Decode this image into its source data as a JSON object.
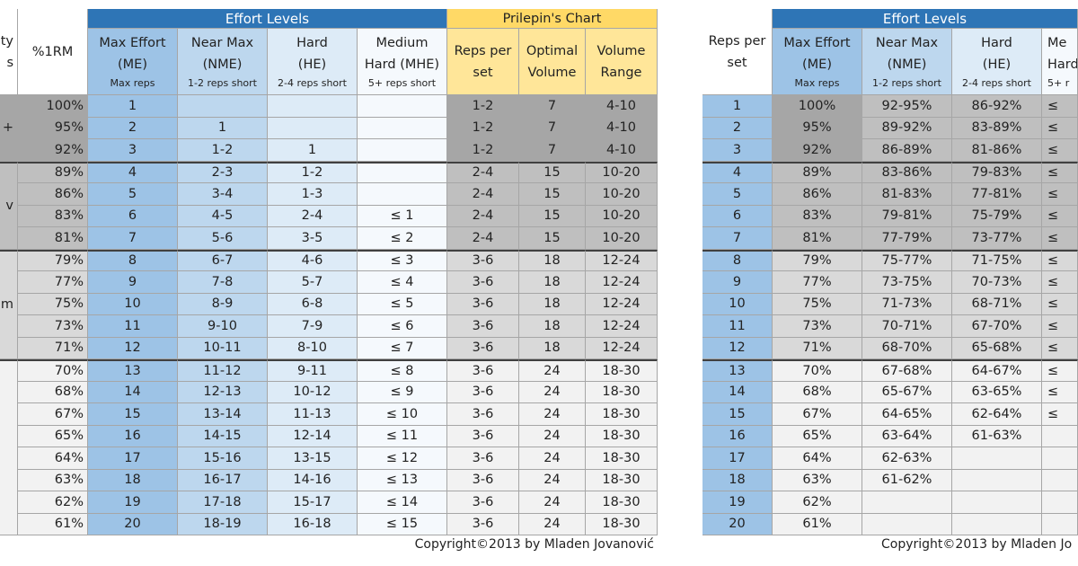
{
  "left_table": {
    "header": {
      "group_label": [
        "ty",
        "s"
      ],
      "pct": "%1RM",
      "effort_levels": "Effort Levels",
      "prilepin": "Prilepin's Chart",
      "columns": [
        {
          "lines": [
            "Max Effort",
            "(ME)"
          ],
          "note": "Max reps"
        },
        {
          "lines": [
            "Near Max",
            "(NME)"
          ],
          "note": "1-2 reps short"
        },
        {
          "lines": [
            "Hard",
            "(HE)"
          ],
          "note": "2-4 reps short"
        },
        {
          "lines": [
            "Medium",
            "Hard (MHE)"
          ],
          "note": "5+ reps short"
        }
      ],
      "prilepin_columns": [
        [
          "Reps per",
          "set"
        ],
        [
          "Optimal",
          "Volume"
        ],
        [
          "Volume",
          "Range"
        ]
      ]
    },
    "groups": [
      {
        "label": "+",
        "rows": [
          [
            "100%",
            "1",
            null,
            null,
            null,
            "1-2",
            "7",
            "4-10"
          ],
          [
            "95%",
            "2",
            "1",
            null,
            null,
            "1-2",
            "7",
            "4-10"
          ],
          [
            "92%",
            "3",
            "1-2",
            "1",
            null,
            "1-2",
            "7",
            "4-10"
          ]
        ]
      },
      {
        "label": "v",
        "rows": [
          [
            "89%",
            "4",
            "2-3",
            "1-2",
            null,
            "2-4",
            "15",
            "10-20"
          ],
          [
            "86%",
            "5",
            "3-4",
            "1-3",
            null,
            "2-4",
            "15",
            "10-20"
          ],
          [
            "83%",
            "6",
            "4-5",
            "2-4",
            "≤ 1",
            "2-4",
            "15",
            "10-20"
          ],
          [
            "81%",
            "7",
            "5-6",
            "3-5",
            "≤ 2",
            "2-4",
            "15",
            "10-20"
          ]
        ]
      },
      {
        "label": "m",
        "rows": [
          [
            "79%",
            "8",
            "6-7",
            "4-6",
            "≤ 3",
            "3-6",
            "18",
            "12-24"
          ],
          [
            "77%",
            "9",
            "7-8",
            "5-7",
            "≤ 4",
            "3-6",
            "18",
            "12-24"
          ],
          [
            "75%",
            "10",
            "8-9",
            "6-8",
            "≤ 5",
            "3-6",
            "18",
            "12-24"
          ],
          [
            "73%",
            "11",
            "9-10",
            "7-9",
            "≤ 6",
            "3-6",
            "18",
            "12-24"
          ],
          [
            "71%",
            "12",
            "10-11",
            "8-10",
            "≤ 7",
            "3-6",
            "18",
            "12-24"
          ]
        ]
      },
      {
        "label": null,
        "rows": [
          [
            "70%",
            "13",
            "11-12",
            "9-11",
            "≤ 8",
            "3-6",
            "24",
            "18-30"
          ],
          [
            "68%",
            "14",
            "12-13",
            "10-12",
            "≤ 9",
            "3-6",
            "24",
            "18-30"
          ],
          [
            "67%",
            "15",
            "13-14",
            "11-13",
            "≤ 10",
            "3-6",
            "24",
            "18-30"
          ],
          [
            "65%",
            "16",
            "14-15",
            "12-14",
            "≤ 11",
            "3-6",
            "24",
            "18-30"
          ],
          [
            "64%",
            "17",
            "15-16",
            "13-15",
            "≤ 12",
            "3-6",
            "24",
            "18-30"
          ],
          [
            "63%",
            "18",
            "16-17",
            "14-16",
            "≤ 13",
            "3-6",
            "24",
            "18-30"
          ],
          [
            "62%",
            "19",
            "17-18",
            "15-17",
            "≤ 14",
            "3-6",
            "24",
            "18-30"
          ],
          [
            "61%",
            "20",
            "18-19",
            "16-18",
            "≤ 15",
            "3-6",
            "24",
            "18-30"
          ]
        ]
      }
    ],
    "footer": "Copyright©2013 by Mladen Jovanović"
  },
  "right_table": {
    "header": {
      "reps": [
        "Reps per",
        "set"
      ],
      "effort_levels": "Effort Levels",
      "columns": [
        {
          "lines": [
            "Max Effort",
            "(ME)"
          ],
          "note": "Max reps"
        },
        {
          "lines": [
            "Near Max",
            "(NME)"
          ],
          "note": "1-2 reps short"
        },
        {
          "lines": [
            "Hard",
            "(HE)"
          ],
          "note": "2-4 reps short"
        },
        {
          "lines": [
            "Me",
            "Hard"
          ],
          "note": "5+ r"
        }
      ]
    },
    "rows": [
      [
        "1",
        "100%",
        "92-95%",
        "86-92%",
        "≤"
      ],
      [
        "2",
        "95%",
        "89-92%",
        "83-89%",
        "≤"
      ],
      [
        "3",
        "92%",
        "86-89%",
        "81-86%",
        "≤"
      ],
      [
        "4",
        "89%",
        "83-86%",
        "79-83%",
        "≤"
      ],
      [
        "5",
        "86%",
        "81-83%",
        "77-81%",
        "≤"
      ],
      [
        "6",
        "83%",
        "79-81%",
        "75-79%",
        "≤"
      ],
      [
        "7",
        "81%",
        "77-79%",
        "73-77%",
        "≤"
      ],
      [
        "8",
        "79%",
        "75-77%",
        "71-75%",
        "≤"
      ],
      [
        "9",
        "77%",
        "73-75%",
        "70-73%",
        "≤"
      ],
      [
        "10",
        "75%",
        "71-73%",
        "68-71%",
        "≤"
      ],
      [
        "11",
        "73%",
        "70-71%",
        "67-70%",
        "≤"
      ],
      [
        "12",
        "71%",
        "68-70%",
        "65-68%",
        "≤"
      ],
      [
        "13",
        "70%",
        "67-68%",
        "64-67%",
        "≤"
      ],
      [
        "14",
        "68%",
        "65-67%",
        "63-65%",
        "≤"
      ],
      [
        "15",
        "67%",
        "64-65%",
        "62-64%",
        "≤"
      ],
      [
        "16",
        "65%",
        "63-64%",
        "61-63%",
        null
      ],
      [
        "17",
        "64%",
        "62-63%",
        null,
        null
      ],
      [
        "18",
        "63%",
        "61-62%",
        null,
        null
      ],
      [
        "19",
        "62%",
        null,
        null,
        null
      ],
      [
        "20",
        "61%",
        null,
        null,
        null
      ]
    ],
    "footer": "Copyright©2013 by Mladen Jo"
  }
}
